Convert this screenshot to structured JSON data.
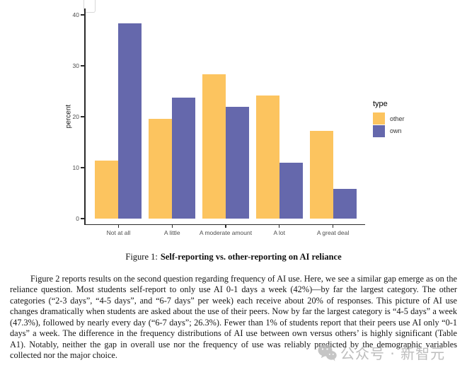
{
  "figure": {
    "caption_prefix": "Figure 1:",
    "caption_title": "Self-reporting vs. other-reporting on AI reliance"
  },
  "chart_data": {
    "type": "bar",
    "title": "",
    "xlabel": "",
    "ylabel": "percent",
    "ylim": [
      0,
      40
    ],
    "yticks": [
      0,
      10,
      20,
      30,
      40
    ],
    "grid": false,
    "legend_title": "type",
    "legend_position": "right",
    "categories": [
      "Not at all",
      "A little",
      "A moderate amount",
      "A lot",
      "A great deal"
    ],
    "series": [
      {
        "name": "other",
        "color": "#FCC45F",
        "values": [
          11.4,
          19.6,
          28.3,
          24.2,
          17.2
        ]
      },
      {
        "name": "own",
        "color": "#6568AC",
        "values": [
          38.4,
          23.8,
          21.9,
          11.0,
          5.9
        ]
      }
    ]
  },
  "paragraph": {
    "text": "Figure 2 reports results on the second question regarding frequency of AI use. Here, we see a similar gap emerge as on the reliance question. Most students self-report to only use AI 0-1 days a week (42%)—by far the largest category. The other categories (“2-3 days”, “4-5 days”, and “6-7 days” per week) each receive about 20% of responses. This picture of AI use changes dramatically when students are asked about the use of their peers. Now by far the largest category is “4-5 days” a week (47.3%), followed by nearly every day (“6-7 days”; 26.3%). Fewer than 1% of students report that their peers use AI only “0-1 days” a week. The difference in the frequency distributions of AI use between own versus others’ is highly significant (Table A1). Notably, neither the gap in overall use nor the frequency of use was reliably predicted by the demographic variables collected nor the major choice."
  },
  "watermark": {
    "icon": "wechat-icon",
    "text": "公众号 · 新智元",
    "color": "#bdbdbd"
  }
}
